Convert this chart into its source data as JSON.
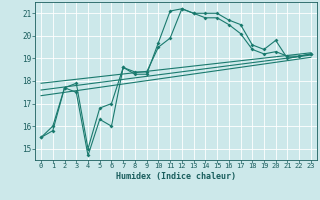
{
  "xlabel": "Humidex (Indice chaleur)",
  "bg_color": "#cce8ea",
  "grid_color": "#ffffff",
  "line_color": "#1a7a6e",
  "xlim": [
    -0.5,
    23.5
  ],
  "ylim": [
    14.5,
    21.5
  ],
  "xticks": [
    0,
    1,
    2,
    3,
    4,
    5,
    6,
    7,
    8,
    9,
    10,
    11,
    12,
    13,
    14,
    15,
    16,
    17,
    18,
    19,
    20,
    21,
    22,
    23
  ],
  "yticks": [
    15,
    16,
    17,
    18,
    19,
    20,
    21
  ],
  "lines": [
    {
      "x": [
        0,
        1,
        2,
        3,
        4,
        5,
        6,
        7,
        8,
        9,
        10,
        11,
        12,
        13,
        14,
        15,
        16,
        17,
        18,
        19,
        20,
        21,
        22,
        23
      ],
      "y": [
        15.5,
        15.8,
        17.7,
        17.5,
        14.7,
        16.3,
        16.0,
        18.6,
        18.3,
        18.3,
        19.7,
        21.1,
        21.2,
        21.0,
        21.0,
        21.0,
        20.7,
        20.5,
        19.6,
        19.4,
        19.8,
        19.0,
        19.1,
        19.2
      ],
      "has_markers": true
    },
    {
      "x": [
        0,
        1,
        2,
        3,
        4,
        5,
        6,
        7,
        8,
        9,
        10,
        11,
        12,
        13,
        14,
        15,
        16,
        17,
        18,
        19,
        20,
        21,
        22,
        23
      ],
      "y": [
        15.5,
        16.0,
        17.7,
        17.9,
        15.0,
        16.8,
        17.0,
        18.6,
        18.4,
        18.4,
        19.5,
        19.9,
        21.2,
        21.0,
        20.8,
        20.8,
        20.5,
        20.1,
        19.4,
        19.2,
        19.3,
        19.1,
        19.1,
        19.2
      ],
      "has_markers": true
    },
    {
      "x": [
        0,
        23
      ],
      "y": [
        17.9,
        19.25
      ],
      "has_markers": false
    },
    {
      "x": [
        0,
        23
      ],
      "y": [
        17.6,
        19.15
      ],
      "has_markers": false
    },
    {
      "x": [
        0,
        23
      ],
      "y": [
        17.35,
        19.05
      ],
      "has_markers": false
    }
  ]
}
